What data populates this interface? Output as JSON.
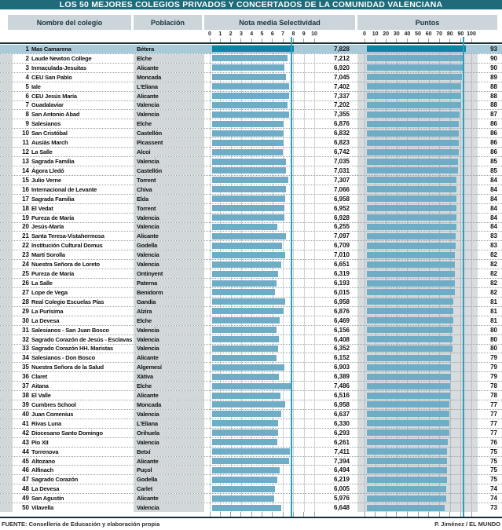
{
  "title": "LOS 50 MEJORES COLEGIOS PRIVADOS Y CONCERTADOS DE LA COMUNIDAD VALENCIANA",
  "header": {
    "name": "Nombre del colegio",
    "town": "Población",
    "nota": "Nota media Selectividad",
    "puntos": "Puntos"
  },
  "axes": {
    "nota": {
      "min": 0,
      "max": 10,
      "ticks": [
        "0",
        "1",
        "2",
        "3",
        "4",
        "5",
        "6",
        "7",
        "8",
        "9",
        "10"
      ]
    },
    "puntos": {
      "min": 0,
      "max": 100,
      "ticks": [
        "0",
        "10",
        "20",
        "30",
        "40",
        "50",
        "60",
        "70",
        "80",
        "90",
        "100"
      ]
    }
  },
  "rows": [
    {
      "rank": "1",
      "name": "Mas Camarena",
      "town": "Bétera",
      "nota": "7,828",
      "puntos": "93"
    },
    {
      "rank": "2",
      "name": "Laude Newton College",
      "town": "Elche",
      "nota": "7,212",
      "puntos": "90"
    },
    {
      "rank": "3",
      "name": "Inmaculada-Jesuitas",
      "town": "Alicante",
      "nota": "6,920",
      "puntos": "90"
    },
    {
      "rank": "4",
      "name": "CEU San Pablo",
      "town": "Moncada",
      "nota": "7,045",
      "puntos": "89"
    },
    {
      "rank": "5",
      "name": "Iale",
      "town": "L'Eliana",
      "nota": "7,402",
      "puntos": "88"
    },
    {
      "rank": "6",
      "name": "CEU Jesús María",
      "town": "Alicante",
      "nota": "7,337",
      "puntos": "88"
    },
    {
      "rank": "7",
      "name": "Guadalaviar",
      "town": "Valencia",
      "nota": "7,202",
      "puntos": "88"
    },
    {
      "rank": "8",
      "name": "San Antonio Abad",
      "town": "Valencia",
      "nota": "7,355",
      "puntos": "87"
    },
    {
      "rank": "9",
      "name": "Salesianos",
      "town": "Elche",
      "nota": "6,876",
      "puntos": "86"
    },
    {
      "rank": "10",
      "name": "San Cristóbal",
      "town": "Castellón",
      "nota": "6,832",
      "puntos": "86"
    },
    {
      "rank": "11",
      "name": "Ausiàs March",
      "town": "Picassent",
      "nota": "6,823",
      "puntos": "86"
    },
    {
      "rank": "12",
      "name": "La Salle",
      "town": "Alcoi",
      "nota": "6,742",
      "puntos": "86"
    },
    {
      "rank": "13",
      "name": "Sagrada Familia",
      "town": "Valencia",
      "nota": "7,035",
      "puntos": "85"
    },
    {
      "rank": "14",
      "name": "Ágora Lledó",
      "town": "Castellón",
      "nota": "7,031",
      "puntos": "85"
    },
    {
      "rank": "15",
      "name": "Julio Verne",
      "town": "Torrent",
      "nota": "7,307",
      "puntos": "84"
    },
    {
      "rank": "16",
      "name": "Internacional de Levante",
      "town": "Chiva",
      "nota": "7,066",
      "puntos": "84"
    },
    {
      "rank": "17",
      "name": "Sagrada Familia",
      "town": "Elda",
      "nota": "6,958",
      "puntos": "84"
    },
    {
      "rank": "18",
      "name": "El Vedat",
      "town": "Torrent",
      "nota": "6,952",
      "puntos": "84"
    },
    {
      "rank": "19",
      "name": "Pureza de María",
      "town": "Valencia",
      "nota": "6,928",
      "puntos": "84"
    },
    {
      "rank": "20",
      "name": "Jesús-María",
      "town": "Valencia",
      "nota": "6,255",
      "puntos": "84"
    },
    {
      "rank": "21",
      "name": "Santa Teresa-Vistahermosa",
      "town": "Alicante",
      "nota": "7,097",
      "puntos": "83"
    },
    {
      "rank": "22",
      "name": "Institución Cultural Domus",
      "town": "Godella",
      "nota": "6,709",
      "puntos": "83"
    },
    {
      "rank": "23",
      "name": "Martí Sorolla",
      "town": "Valencia",
      "nota": "7,010",
      "puntos": "82"
    },
    {
      "rank": "24",
      "name": "Nuestra Señora de Loreto",
      "town": "Valencia",
      "nota": "6,651",
      "puntos": "82"
    },
    {
      "rank": "25",
      "name": "Pureza de María",
      "town": "Ontinyent",
      "nota": "6,319",
      "puntos": "82"
    },
    {
      "rank": "26",
      "name": "La Salle",
      "town": "Paterna",
      "nota": "6,193",
      "puntos": "82"
    },
    {
      "rank": "27",
      "name": "Lope de Vega",
      "town": "Benidorm",
      "nota": "6,015",
      "puntos": "82"
    },
    {
      "rank": "28",
      "name": "Real Colegio Escuelas Pías",
      "town": "Gandia",
      "nota": "6,958",
      "puntos": "81"
    },
    {
      "rank": "29",
      "name": "La Purísima",
      "town": "Alzira",
      "nota": "6,876",
      "puntos": "81"
    },
    {
      "rank": "30",
      "name": "La Devesa",
      "town": "Elche",
      "nota": "6,469",
      "puntos": "81"
    },
    {
      "rank": "31",
      "name": "Salesianos - San Juan Bosco",
      "town": "Valencia",
      "nota": "6,156",
      "puntos": "80"
    },
    {
      "rank": "32",
      "name": "Sagrado Corazón de Jesús - Esclavas",
      "town": "Valencia",
      "nota": "6,408",
      "puntos": "80"
    },
    {
      "rank": "33",
      "name": "Sagrado Corazón HH. Maristas",
      "town": "Valencia",
      "nota": "6,352",
      "puntos": "80"
    },
    {
      "rank": "34",
      "name": "Salesianos - Don Bosco",
      "town": "Alicante",
      "nota": "6,152",
      "puntos": "79"
    },
    {
      "rank": "35",
      "name": "Nuestra Señora de la Salud",
      "town": "Algemesí",
      "nota": "6,903",
      "puntos": "79"
    },
    {
      "rank": "36",
      "name": "Claret",
      "town": "Xàtiva",
      "nota": "6,389",
      "puntos": "79"
    },
    {
      "rank": "37",
      "name": "Aitana",
      "town": "Elche",
      "nota": "7,486",
      "puntos": "78"
    },
    {
      "rank": "38",
      "name": "El Valle",
      "town": "Alicante",
      "nota": "6,516",
      "puntos": "78"
    },
    {
      "rank": "39",
      "name": "Cumbres School",
      "town": "Moncada",
      "nota": "6,958",
      "puntos": "77"
    },
    {
      "rank": "40",
      "name": "Juan Comenius",
      "town": "Valencia",
      "nota": "6,637",
      "puntos": "77"
    },
    {
      "rank": "41",
      "name": "Rivas Luna",
      "town": "L'Eliana",
      "nota": "6,330",
      "puntos": "77"
    },
    {
      "rank": "42",
      "name": "Diocesano Santo Domingo",
      "town": "Orihuela",
      "nota": "6,293",
      "puntos": "77"
    },
    {
      "rank": "43",
      "name": "Pio XII",
      "town": "Valencia",
      "nota": "6,261",
      "puntos": "76"
    },
    {
      "rank": "44",
      "name": "Torrenova",
      "town": "Betxí",
      "nota": "7,411",
      "puntos": "75"
    },
    {
      "rank": "45",
      "name": "Altozano",
      "town": "Alicante",
      "nota": "7,394",
      "puntos": "75"
    },
    {
      "rank": "46",
      "name": "Alfinach",
      "town": "Puçol",
      "nota": "6,494",
      "puntos": "75"
    },
    {
      "rank": "47",
      "name": "Sagrado Corazón",
      "town": "Godella",
      "nota": "6,219",
      "puntos": "75"
    },
    {
      "rank": "48",
      "name": "La Devesa",
      "town": "Carlet",
      "nota": "6,005",
      "puntos": "74"
    },
    {
      "rank": "49",
      "name": "San Agustín",
      "town": "Alicante",
      "nota": "5,976",
      "puntos": "74"
    },
    {
      "rank": "50",
      "name": "Vilavella",
      "town": "Valencia",
      "nota": "6,648",
      "puntos": "73"
    }
  ],
  "footer": {
    "source": "FUENTE: Conselleria de Educación y elaboración propia",
    "credit": "P. Jiménez / EL MUNDO"
  },
  "colors": {
    "title_bg": "#1f6b7a",
    "bar": "#6fadc7",
    "bar_leader": "#0f84a6",
    "leader_row_bg": "#a8cad9",
    "column_bg": "#d2d7d9",
    "puntos_panel_bg": "#d8dcde",
    "ref_line": "#2d9fbc"
  },
  "chart_data": {
    "type": "bar",
    "orientation": "horizontal",
    "title": "LOS 50 MEJORES COLEGIOS PRIVADOS Y CONCERTADOS DE LA COMUNIDAD VALENCIANA",
    "categories": [
      "Mas Camarena",
      "Laude Newton College",
      "Inmaculada-Jesuitas",
      "CEU San Pablo",
      "Iale",
      "CEU Jesús María",
      "Guadalaviar",
      "San Antonio Abad",
      "Salesianos",
      "San Cristóbal",
      "Ausiàs March",
      "La Salle",
      "Sagrada Familia",
      "Ágora Lledó",
      "Julio Verne",
      "Internacional de Levante",
      "Sagrada Familia",
      "El Vedat",
      "Pureza de María",
      "Jesús-María",
      "Santa Teresa-Vistahermosa",
      "Institución Cultural Domus",
      "Martí Sorolla",
      "Nuestra Señora de Loreto",
      "Pureza de María",
      "La Salle",
      "Lope de Vega",
      "Real Colegio Escuelas Pías",
      "La Purísima",
      "La Devesa",
      "Salesianos - San Juan Bosco",
      "Sagrado Corazón de Jesús - Esclavas",
      "Sagrado Corazón HH. Maristas",
      "Salesianos - Don Bosco",
      "Nuestra Señora de la Salud",
      "Claret",
      "Aitana",
      "El Valle",
      "Cumbres School",
      "Juan Comenius",
      "Rivas Luna",
      "Diocesano Santo Domingo",
      "Pio XII",
      "Torrenova",
      "Altozano",
      "Alfinach",
      "Sagrado Corazón",
      "La Devesa",
      "San Agustín",
      "Vilavella"
    ],
    "series": [
      {
        "name": "Nota media Selectividad",
        "axis_range": [
          0,
          10
        ],
        "values": [
          7.828,
          7.212,
          6.92,
          7.045,
          7.402,
          7.337,
          7.202,
          7.355,
          6.876,
          6.832,
          6.823,
          6.742,
          7.035,
          7.031,
          7.307,
          7.066,
          6.958,
          6.952,
          6.928,
          6.255,
          7.097,
          6.709,
          7.01,
          6.651,
          6.319,
          6.193,
          6.015,
          6.958,
          6.876,
          6.469,
          6.156,
          6.408,
          6.352,
          6.152,
          6.903,
          6.389,
          7.486,
          6.516,
          6.958,
          6.637,
          6.33,
          6.293,
          6.261,
          7.411,
          7.394,
          6.494,
          6.219,
          6.005,
          5.976,
          6.648
        ]
      },
      {
        "name": "Puntos",
        "axis_range": [
          0,
          100
        ],
        "values": [
          93,
          90,
          90,
          89,
          88,
          88,
          88,
          87,
          86,
          86,
          86,
          86,
          85,
          85,
          84,
          84,
          84,
          84,
          84,
          84,
          83,
          83,
          82,
          82,
          82,
          82,
          82,
          81,
          81,
          81,
          80,
          80,
          80,
          79,
          79,
          79,
          78,
          78,
          77,
          77,
          77,
          77,
          76,
          75,
          75,
          75,
          75,
          74,
          74,
          73
        ]
      }
    ],
    "grid": true,
    "legend": false,
    "notes": "Row 1 (leader) highlighted; teal reference lines mark the leader's values (7.828 and 93)."
  }
}
